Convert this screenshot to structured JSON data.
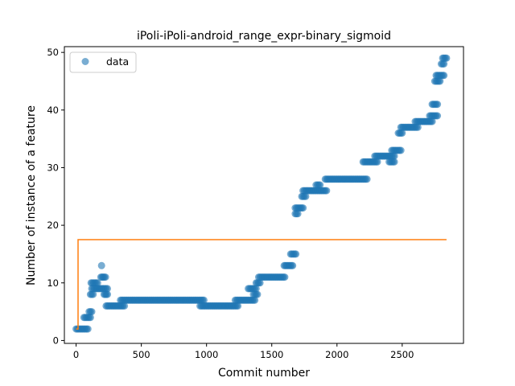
{
  "chart_data": {
    "type": "scatter",
    "title": "iPoli-iPoli-android_range_expr-binary_sigmoid",
    "xlabel": "Commit number",
    "ylabel": "Number of instance of a feature",
    "xlim": [
      -90,
      2970
    ],
    "ylim": [
      -0.5,
      51
    ],
    "xticks": [
      0,
      500,
      1000,
      1500,
      2000,
      2500
    ],
    "yticks": [
      0,
      10,
      20,
      30,
      40,
      50
    ],
    "grid": false,
    "legend": {
      "placement": "top-left",
      "entries": [
        "data"
      ]
    },
    "colors": {
      "data": "#1f77b4",
      "fit": "#ff7f0e"
    },
    "series": [
      {
        "name": "data",
        "kind": "scatter",
        "segments": [
          {
            "x": [
              0,
              90
            ],
            "y": 2
          },
          {
            "x": [
              60,
              110
            ],
            "y": 4
          },
          {
            "x": [
              100,
              120
            ],
            "y": 5
          },
          {
            "x": [
              110,
              130
            ],
            "y": 8
          },
          {
            "x": [
              115,
              165
            ],
            "y": 10
          },
          {
            "x": [
              120,
              240
            ],
            "y": 9
          },
          {
            "x": [
              190,
              225
            ],
            "y": 11
          },
          {
            "x": [
              215,
              240
            ],
            "y": 8
          },
          {
            "x": [
              230,
              370
            ],
            "y": 6
          },
          {
            "x": [
              340,
              980
            ],
            "y": 7
          },
          {
            "x": [
              950,
              1240
            ],
            "y": 6
          },
          {
            "x": [
              1220,
              1370
            ],
            "y": 7
          },
          {
            "x": [
              1320,
              1380
            ],
            "y": 9
          },
          {
            "x": [
              1360,
              1390
            ],
            "y": 8
          },
          {
            "x": [
              1380,
              1410
            ],
            "y": 10
          },
          {
            "x": [
              1400,
              1600
            ],
            "y": 11
          },
          {
            "x": [
              1595,
              1660
            ],
            "y": 13
          },
          {
            "x": [
              1645,
              1685
            ],
            "y": 15
          },
          {
            "x": [
              1680,
              1700
            ],
            "y": 22
          },
          {
            "x": [
              1690,
              1740
            ],
            "y": 23
          },
          {
            "x": [
              1730,
              1760
            ],
            "y": 25
          },
          {
            "x": [
              1740,
              1920
            ],
            "y": 26
          },
          {
            "x": [
              1840,
              1870
            ],
            "y": 27
          },
          {
            "x": [
              1910,
              2230
            ],
            "y": 28
          },
          {
            "x": [
              2200,
              2310
            ],
            "y": 31
          },
          {
            "x": [
              2290,
              2440
            ],
            "y": 32
          },
          {
            "x": [
              2400,
              2440
            ],
            "y": 31
          },
          {
            "x": [
              2420,
              2490
            ],
            "y": 33
          },
          {
            "x": [
              2470,
              2500
            ],
            "y": 36
          },
          {
            "x": [
              2490,
              2620
            ],
            "y": 37
          },
          {
            "x": [
              2600,
              2730
            ],
            "y": 38
          },
          {
            "x": [
              2710,
              2770
            ],
            "y": 39
          },
          {
            "x": [
              2730,
              2770
            ],
            "y": 41
          },
          {
            "x": [
              2750,
              2790
            ],
            "y": 45
          },
          {
            "x": [
              2760,
              2820
            ],
            "y": 46
          },
          {
            "x": [
              2800,
              2820
            ],
            "y": 48
          },
          {
            "x": [
              2810,
              2840
            ],
            "y": 49
          }
        ],
        "points": [
          {
            "x": 195,
            "y": 13
          },
          {
            "x": 1680,
            "y": 23
          }
        ]
      },
      {
        "kind": "line",
        "x": [
          0,
          15,
          15,
          2840
        ],
        "y": [
          2,
          2,
          17.5,
          17.5
        ]
      }
    ]
  }
}
